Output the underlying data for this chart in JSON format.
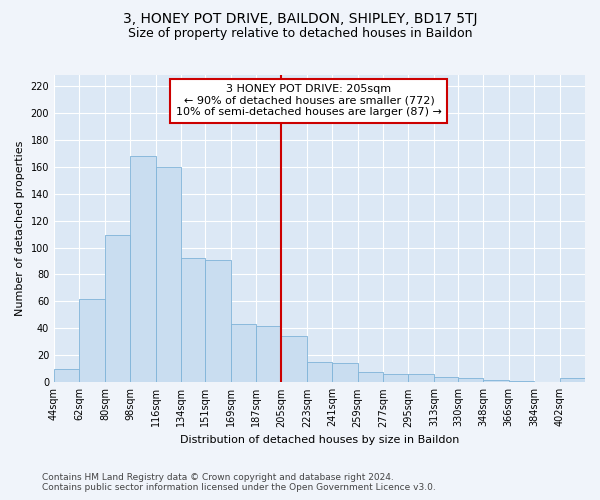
{
  "title": "3, HONEY POT DRIVE, BAILDON, SHIPLEY, BD17 5TJ",
  "subtitle": "Size of property relative to detached houses in Baildon",
  "xlabel": "Distribution of detached houses by size in Baildon",
  "ylabel": "Number of detached properties",
  "bar_color": "#c9ddf0",
  "bar_edgecolor": "#7fb3d8",
  "vline_x_index": 9,
  "vline_color": "#cc0000",
  "annotation_lines": [
    "3 HONEY POT DRIVE: 205sqm",
    "← 90% of detached houses are smaller (772)",
    "10% of semi-detached houses are larger (87) →"
  ],
  "bin_labels": [
    "44sqm",
    "62sqm",
    "80sqm",
    "98sqm",
    "116sqm",
    "134sqm",
    "151sqm",
    "169sqm",
    "187sqm",
    "205sqm",
    "223sqm",
    "241sqm",
    "259sqm",
    "277sqm",
    "295sqm",
    "313sqm",
    "330sqm",
    "348sqm",
    "366sqm",
    "384sqm",
    "402sqm"
  ],
  "bin_edges": [
    44,
    62,
    80,
    98,
    116,
    134,
    151,
    169,
    187,
    205,
    223,
    241,
    259,
    277,
    295,
    313,
    330,
    348,
    366,
    384,
    402,
    420
  ],
  "bar_heights": [
    10,
    62,
    109,
    168,
    160,
    92,
    91,
    43,
    42,
    34,
    15,
    14,
    8,
    6,
    6,
    4,
    3,
    2,
    1,
    0,
    3
  ],
  "ylim": [
    0,
    228
  ],
  "yticks": [
    0,
    20,
    40,
    60,
    80,
    100,
    120,
    140,
    160,
    180,
    200,
    220
  ],
  "fig_background": "#f0f4fa",
  "plot_background": "#dce8f5",
  "grid_color": "#ffffff",
  "footer_lines": [
    "Contains HM Land Registry data © Crown copyright and database right 2024.",
    "Contains public sector information licensed under the Open Government Licence v3.0."
  ],
  "title_fontsize": 10,
  "subtitle_fontsize": 9,
  "axis_label_fontsize": 8,
  "tick_fontsize": 7,
  "annotation_fontsize": 8,
  "footer_fontsize": 6.5
}
